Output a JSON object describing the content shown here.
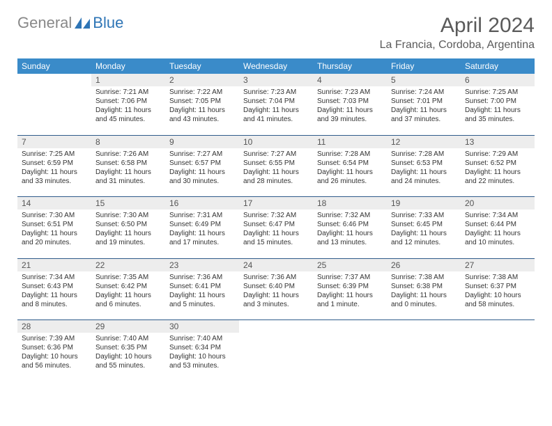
{
  "logo": {
    "general": "General",
    "blue": "Blue"
  },
  "title": "April 2024",
  "location": "La Francia, Cordoba, Argentina",
  "colors": {
    "header_bg": "#3a8bc9",
    "header_text": "#ffffff",
    "daynum_bg": "#ededed",
    "border": "#2e5b8a",
    "logo_gray": "#888888",
    "logo_blue": "#2e75b6"
  },
  "day_headers": [
    "Sunday",
    "Monday",
    "Tuesday",
    "Wednesday",
    "Thursday",
    "Friday",
    "Saturday"
  ],
  "calendar": {
    "type": "table",
    "columns": 7,
    "weeks": [
      [
        null,
        {
          "n": "1",
          "sr": "7:21 AM",
          "ss": "7:06 PM",
          "dl": "11 hours and 45 minutes."
        },
        {
          "n": "2",
          "sr": "7:22 AM",
          "ss": "7:05 PM",
          "dl": "11 hours and 43 minutes."
        },
        {
          "n": "3",
          "sr": "7:23 AM",
          "ss": "7:04 PM",
          "dl": "11 hours and 41 minutes."
        },
        {
          "n": "4",
          "sr": "7:23 AM",
          "ss": "7:03 PM",
          "dl": "11 hours and 39 minutes."
        },
        {
          "n": "5",
          "sr": "7:24 AM",
          "ss": "7:01 PM",
          "dl": "11 hours and 37 minutes."
        },
        {
          "n": "6",
          "sr": "7:25 AM",
          "ss": "7:00 PM",
          "dl": "11 hours and 35 minutes."
        }
      ],
      [
        {
          "n": "7",
          "sr": "7:25 AM",
          "ss": "6:59 PM",
          "dl": "11 hours and 33 minutes."
        },
        {
          "n": "8",
          "sr": "7:26 AM",
          "ss": "6:58 PM",
          "dl": "11 hours and 31 minutes."
        },
        {
          "n": "9",
          "sr": "7:27 AM",
          "ss": "6:57 PM",
          "dl": "11 hours and 30 minutes."
        },
        {
          "n": "10",
          "sr": "7:27 AM",
          "ss": "6:55 PM",
          "dl": "11 hours and 28 minutes."
        },
        {
          "n": "11",
          "sr": "7:28 AM",
          "ss": "6:54 PM",
          "dl": "11 hours and 26 minutes."
        },
        {
          "n": "12",
          "sr": "7:28 AM",
          "ss": "6:53 PM",
          "dl": "11 hours and 24 minutes."
        },
        {
          "n": "13",
          "sr": "7:29 AM",
          "ss": "6:52 PM",
          "dl": "11 hours and 22 minutes."
        }
      ],
      [
        {
          "n": "14",
          "sr": "7:30 AM",
          "ss": "6:51 PM",
          "dl": "11 hours and 20 minutes."
        },
        {
          "n": "15",
          "sr": "7:30 AM",
          "ss": "6:50 PM",
          "dl": "11 hours and 19 minutes."
        },
        {
          "n": "16",
          "sr": "7:31 AM",
          "ss": "6:49 PM",
          "dl": "11 hours and 17 minutes."
        },
        {
          "n": "17",
          "sr": "7:32 AM",
          "ss": "6:47 PM",
          "dl": "11 hours and 15 minutes."
        },
        {
          "n": "18",
          "sr": "7:32 AM",
          "ss": "6:46 PM",
          "dl": "11 hours and 13 minutes."
        },
        {
          "n": "19",
          "sr": "7:33 AM",
          "ss": "6:45 PM",
          "dl": "11 hours and 12 minutes."
        },
        {
          "n": "20",
          "sr": "7:34 AM",
          "ss": "6:44 PM",
          "dl": "11 hours and 10 minutes."
        }
      ],
      [
        {
          "n": "21",
          "sr": "7:34 AM",
          "ss": "6:43 PM",
          "dl": "11 hours and 8 minutes."
        },
        {
          "n": "22",
          "sr": "7:35 AM",
          "ss": "6:42 PM",
          "dl": "11 hours and 6 minutes."
        },
        {
          "n": "23",
          "sr": "7:36 AM",
          "ss": "6:41 PM",
          "dl": "11 hours and 5 minutes."
        },
        {
          "n": "24",
          "sr": "7:36 AM",
          "ss": "6:40 PM",
          "dl": "11 hours and 3 minutes."
        },
        {
          "n": "25",
          "sr": "7:37 AM",
          "ss": "6:39 PM",
          "dl": "11 hours and 1 minute."
        },
        {
          "n": "26",
          "sr": "7:38 AM",
          "ss": "6:38 PM",
          "dl": "11 hours and 0 minutes."
        },
        {
          "n": "27",
          "sr": "7:38 AM",
          "ss": "6:37 PM",
          "dl": "10 hours and 58 minutes."
        }
      ],
      [
        {
          "n": "28",
          "sr": "7:39 AM",
          "ss": "6:36 PM",
          "dl": "10 hours and 56 minutes."
        },
        {
          "n": "29",
          "sr": "7:40 AM",
          "ss": "6:35 PM",
          "dl": "10 hours and 55 minutes."
        },
        {
          "n": "30",
          "sr": "7:40 AM",
          "ss": "6:34 PM",
          "dl": "10 hours and 53 minutes."
        },
        null,
        null,
        null,
        null
      ]
    ]
  },
  "labels": {
    "sunrise": "Sunrise:",
    "sunset": "Sunset:",
    "daylight": "Daylight:"
  }
}
